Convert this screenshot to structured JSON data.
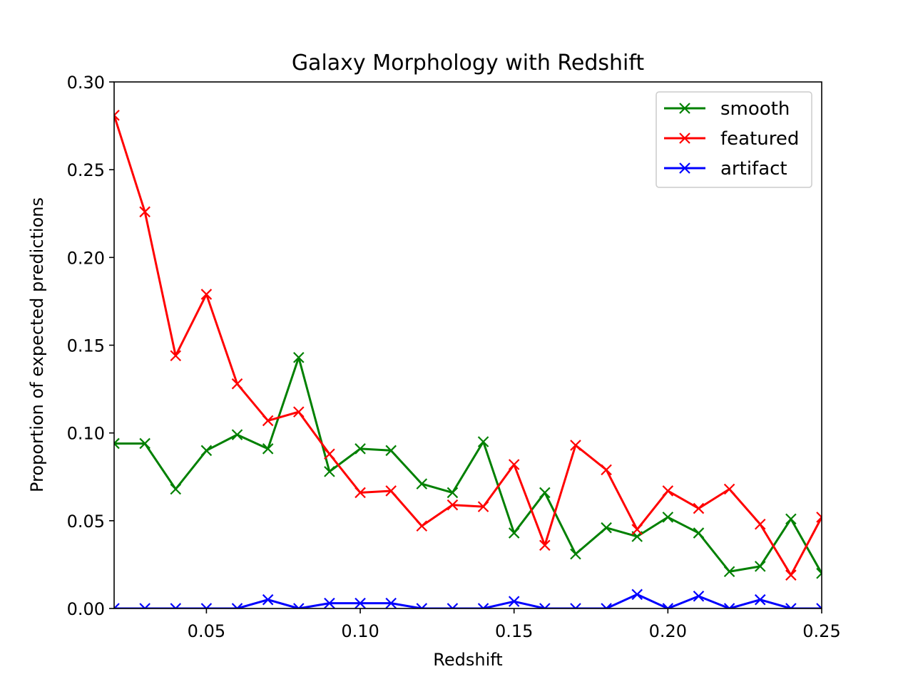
{
  "chart_data": {
    "type": "line",
    "title": "Galaxy Morphology with Redshift",
    "xlabel": "Redshift",
    "ylabel": "Proportion of expected predictions",
    "xlim": [
      0.02,
      0.25
    ],
    "ylim": [
      0.0,
      0.3
    ],
    "xticks": [
      "0.05",
      "0.10",
      "0.15",
      "0.20",
      "0.25"
    ],
    "yticks": [
      "0.00",
      "0.05",
      "0.10",
      "0.15",
      "0.20",
      "0.25",
      "0.30"
    ],
    "grid": false,
    "legend": "top-right",
    "marker": "x",
    "x": [
      0.02,
      0.03,
      0.04,
      0.05,
      0.06,
      0.07,
      0.08,
      0.09,
      0.1,
      0.11,
      0.12,
      0.13,
      0.14,
      0.15,
      0.16,
      0.17,
      0.18,
      0.19,
      0.2,
      0.21,
      0.22,
      0.23,
      0.24,
      0.25
    ],
    "series": [
      {
        "name": "smooth",
        "color": "#008000",
        "values": [
          0.094,
          0.094,
          0.068,
          0.09,
          0.099,
          0.091,
          0.143,
          0.078,
          0.091,
          0.09,
          0.071,
          0.066,
          0.095,
          0.043,
          0.066,
          0.031,
          0.046,
          0.041,
          0.052,
          0.043,
          0.021,
          0.024,
          0.051,
          0.02
        ]
      },
      {
        "name": "featured",
        "color": "#ff0000",
        "values": [
          0.281,
          0.226,
          0.144,
          0.179,
          0.128,
          0.107,
          0.112,
          0.088,
          0.066,
          0.067,
          0.047,
          0.059,
          0.058,
          0.082,
          0.036,
          0.093,
          0.079,
          0.045,
          0.067,
          0.057,
          0.068,
          0.048,
          0.019,
          0.052
        ]
      },
      {
        "name": "artifact",
        "color": "#0000ff",
        "values": [
          0.0,
          0.0,
          0.0,
          0.0,
          0.0,
          0.005,
          0.0,
          0.003,
          0.003,
          0.003,
          0.0,
          0.0,
          0.0,
          0.004,
          0.0,
          0.0,
          0.0,
          0.008,
          0.0,
          0.007,
          0.0,
          0.005,
          0.0,
          0.0
        ]
      }
    ]
  }
}
